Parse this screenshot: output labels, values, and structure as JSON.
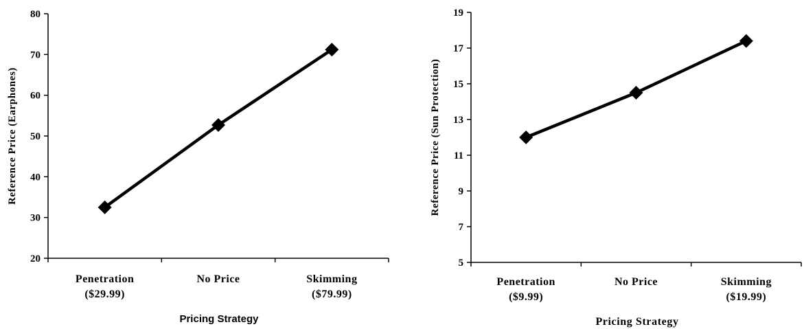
{
  "chart_data": [
    {
      "type": "line",
      "categories": [
        [
          "Penetration",
          "($29.99)"
        ],
        [
          "No Price",
          ""
        ],
        [
          "Skimming",
          "($79.99)"
        ]
      ],
      "series": [
        {
          "values": [
            32.5,
            52.7,
            71.2
          ]
        }
      ],
      "xlabel": "Pricing Strategy",
      "ylabel": "Reference Price (Earphones)",
      "ylim": [
        20,
        80
      ],
      "yticks": [
        20,
        30,
        40,
        50,
        60,
        70,
        80
      ],
      "grid": false,
      "line_color": "#000000",
      "marker": "diamond"
    },
    {
      "type": "line",
      "categories": [
        [
          "Penetration",
          "($9.99)"
        ],
        [
          "No Price",
          ""
        ],
        [
          "Skimming",
          "($19.99)"
        ]
      ],
      "series": [
        {
          "values": [
            12.0,
            14.5,
            17.4
          ]
        }
      ],
      "xlabel": "Pricing Strategy",
      "ylabel": "Reference Price (Sun Protection)",
      "ylim": [
        5,
        19
      ],
      "yticks": [
        5,
        7,
        9,
        11,
        13,
        15,
        17,
        19
      ],
      "grid": false,
      "line_color": "#000000",
      "marker": "diamond"
    }
  ]
}
